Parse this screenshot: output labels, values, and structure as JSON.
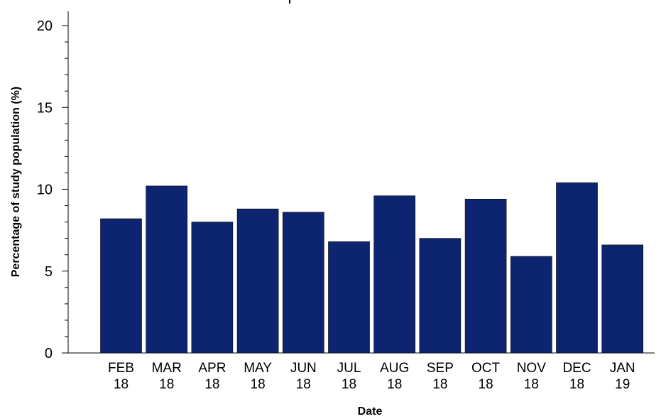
{
  "chart_data": {
    "type": "bar",
    "categories": [
      [
        "FEB",
        "18"
      ],
      [
        "MAR",
        "18"
      ],
      [
        "APR",
        "18"
      ],
      [
        "MAY",
        "18"
      ],
      [
        "JUN",
        "18"
      ],
      [
        "JUL",
        "18"
      ],
      [
        "AUG",
        "18"
      ],
      [
        "SEP",
        "18"
      ],
      [
        "OCT",
        "18"
      ],
      [
        "NOV",
        "18"
      ],
      [
        "DEC",
        "18"
      ],
      [
        "JAN",
        "19"
      ]
    ],
    "values": [
      8.2,
      10.2,
      8.0,
      8.8,
      8.6,
      6.8,
      9.6,
      7.0,
      9.4,
      5.9,
      10.4,
      6.6
    ],
    "xlabel": "Date",
    "ylabel": "Percentage of study population (%)",
    "ylim": [
      0,
      20
    ],
    "yticks": [
      0,
      5,
      10,
      15,
      20
    ],
    "bar_color": "#0d2570",
    "grid": false
  }
}
